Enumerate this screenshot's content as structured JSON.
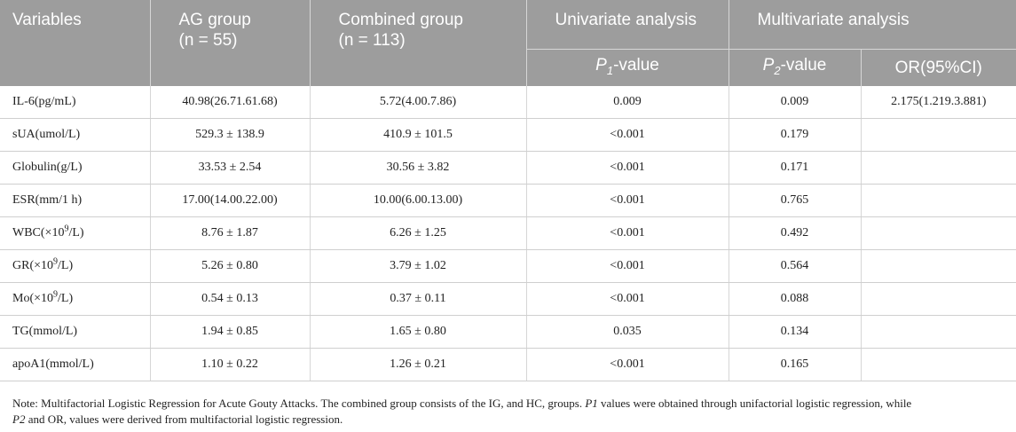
{
  "header": {
    "variables": "Variables",
    "ag_group": "AG group",
    "ag_n": "(n = 55)",
    "combined_group": "Combined group",
    "combined_n": "(n = 113)",
    "univariate": "Univariate analysis",
    "multivariate": "Multivariate analysis",
    "p_prefix": "P",
    "p1_sub": "1",
    "p2_sub": "2",
    "value_suffix": "-value",
    "or_ci": "OR(95%CI)"
  },
  "rows": [
    {
      "variable": "IL-6(pg/mL)",
      "ag": "40.98(26.71.61.68)",
      "combined": "5.72(4.00.7.86)",
      "p1": "0.009",
      "p2": "0.009",
      "or": "2.175(1.219.3.881)"
    },
    {
      "variable": "sUA(umol/L)",
      "ag": "529.3 ± 138.9",
      "combined": "410.9 ± 101.5",
      "p1": "<0.001",
      "p2": "0.179",
      "or": ""
    },
    {
      "variable": "Globulin(g/L)",
      "ag": "33.53 ± 2.54",
      "combined": "30.56 ± 3.82",
      "p1": "<0.001",
      "p2": "0.171",
      "or": ""
    },
    {
      "variable": "ESR(mm/1 h)",
      "ag": "17.00(14.00.22.00)",
      "combined": "10.00(6.00.13.00)",
      "p1": "<0.001",
      "p2": "0.765",
      "or": ""
    },
    {
      "variable_pre": "WBC(×10",
      "variable_sup": "9",
      "variable_post": "/L)",
      "ag": "8.76 ± 1.87",
      "combined": "6.26 ± 1.25",
      "p1": "<0.001",
      "p2": "0.492",
      "or": ""
    },
    {
      "variable_pre": "GR(×10",
      "variable_sup": "9",
      "variable_post": "/L)",
      "ag": "5.26 ± 0.80",
      "combined": "3.79 ± 1.02",
      "p1": "<0.001",
      "p2": "0.564",
      "or": ""
    },
    {
      "variable_pre": "Mo(×10",
      "variable_sup": "9",
      "variable_post": "/L)",
      "ag": "0.54 ± 0.13",
      "combined": "0.37 ± 0.11",
      "p1": "<0.001",
      "p2": "0.088",
      "or": ""
    },
    {
      "variable": "TG(mmol/L)",
      "ag": "1.94 ± 0.85",
      "combined": "1.65 ± 0.80",
      "p1": "0.035",
      "p2": "0.134",
      "or": ""
    },
    {
      "variable": "apoA1(mmol/L)",
      "ag": "1.10 ± 0.22",
      "combined": "1.26 ± 0.21",
      "p1": "<0.001",
      "p2": "0.165",
      "or": ""
    }
  ],
  "note": {
    "part1": "Note: Multifactorial Logistic Regression for Acute Gouty Attacks. The combined group consists of the IG, and HC, groups. ",
    "p1": "P1",
    "part2": " values were obtained through unifactorial logistic regression, while",
    "p2": "P2",
    "part3": " and OR, values were derived from multifactorial logistic regression."
  }
}
